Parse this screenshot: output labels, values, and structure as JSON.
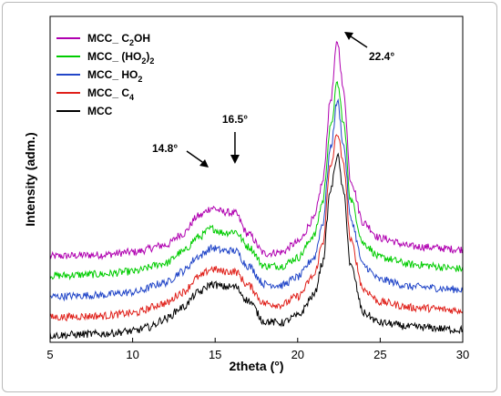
{
  "chart_data": {
    "type": "line",
    "xlabel": "2theta (°)",
    "ylabel": "Intensity (adm.)",
    "xlim": [
      5,
      30
    ],
    "x_ticks": [
      5,
      10,
      15,
      20,
      25,
      30
    ],
    "y_ticks_shown": false,
    "legend_position": "top-left",
    "series": [
      {
        "name": "MCC_ C2OH",
        "name_base": "MCC_ C",
        "name_sub": "2",
        "name_tail": "OH",
        "color": "#b000b0",
        "x": [
          5,
          8,
          10,
          12,
          13,
          14,
          14.8,
          15.5,
          16.2,
          17,
          18,
          19,
          20,
          21,
          21.5,
          22,
          22.4,
          22.8,
          23.2,
          24,
          25,
          27,
          30
        ],
        "y": [
          5.7,
          5.8,
          6.0,
          6.5,
          7.3,
          8.6,
          9.2,
          8.9,
          8.8,
          7.3,
          5.9,
          6.0,
          6.7,
          8.4,
          11.0,
          17.0,
          21.2,
          17.5,
          11.2,
          8.1,
          7.0,
          6.4,
          6.2
        ]
      },
      {
        "name": "MCC_ (HO2)2",
        "name_base": "MCC_ (HO",
        "name_sub": "2",
        "name_tail": ")",
        "name_sub2": "2",
        "color": "#00cc00",
        "x": [
          5,
          8,
          10,
          12,
          13,
          14,
          14.8,
          15.5,
          16.2,
          17,
          18,
          19,
          20,
          21,
          21.5,
          22,
          22.4,
          22.8,
          23.2,
          24,
          25,
          27,
          30
        ],
        "y": [
          4.3,
          4.4,
          4.6,
          5.2,
          6.0,
          7.1,
          7.7,
          7.4,
          7.5,
          6.4,
          5.0,
          5.0,
          5.6,
          7.2,
          9.6,
          15.0,
          18.2,
          15.2,
          9.8,
          6.6,
          5.6,
          5.1,
          4.8
        ]
      },
      {
        "name": "MCC_ HO2",
        "name_base": "MCC_ HO",
        "name_sub": "2",
        "name_tail": "",
        "color": "#2246c8",
        "x": [
          5,
          8,
          10,
          12,
          13,
          14,
          14.8,
          15.5,
          16.2,
          17,
          18,
          19,
          20,
          21,
          21.5,
          22,
          22.4,
          22.8,
          23.2,
          24,
          25,
          27,
          30
        ],
        "y": [
          2.8,
          2.9,
          3.1,
          3.8,
          4.6,
          5.7,
          6.3,
          6.1,
          6.1,
          5.0,
          3.7,
          3.6,
          4.2,
          5.6,
          8.0,
          13.5,
          16.9,
          13.6,
          8.4,
          5.0,
          4.0,
          3.5,
          3.3
        ]
      },
      {
        "name": "MCC_ C4",
        "name_base": "MCC_ C",
        "name_sub": "4",
        "name_tail": "",
        "color": "#e0201a",
        "x": [
          5,
          8,
          10,
          12,
          13,
          14,
          14.8,
          15.5,
          16.2,
          17,
          18,
          19,
          20,
          21,
          21.5,
          22,
          22.4,
          22.8,
          23.2,
          24,
          25,
          27,
          30
        ],
        "y": [
          1.3,
          1.4,
          1.6,
          2.3,
          3.1,
          4.2,
          4.8,
          4.6,
          4.6,
          3.6,
          2.3,
          2.2,
          2.8,
          4.3,
          6.6,
          12.2,
          14.6,
          12.2,
          6.8,
          3.3,
          2.4,
          2.0,
          1.8
        ]
      },
      {
        "name": "MCC",
        "name_base": "MCC",
        "name_sub": "",
        "name_tail": "",
        "color": "#000000",
        "x": [
          5,
          8,
          10,
          11,
          12,
          13,
          14,
          14.8,
          15.5,
          16.2,
          17,
          18,
          19,
          20,
          21,
          21.5,
          22,
          22.4,
          22.8,
          23.2,
          24,
          25,
          27,
          30
        ],
        "y": [
          0.0,
          0.1,
          0.3,
          0.6,
          1.2,
          2.0,
          3.1,
          3.7,
          3.5,
          3.5,
          2.5,
          1.0,
          0.9,
          1.4,
          2.9,
          5.2,
          10.5,
          13.0,
          10.2,
          5.0,
          1.6,
          0.9,
          0.6,
          0.4
        ]
      }
    ],
    "ylim": [
      -0.5,
      23
    ],
    "annotations": [
      {
        "text": "22.4°",
        "x": 22.4
      },
      {
        "text": "16.5°",
        "x": 16.2
      },
      {
        "text": "14.8°",
        "x": 14.8
      }
    ]
  }
}
